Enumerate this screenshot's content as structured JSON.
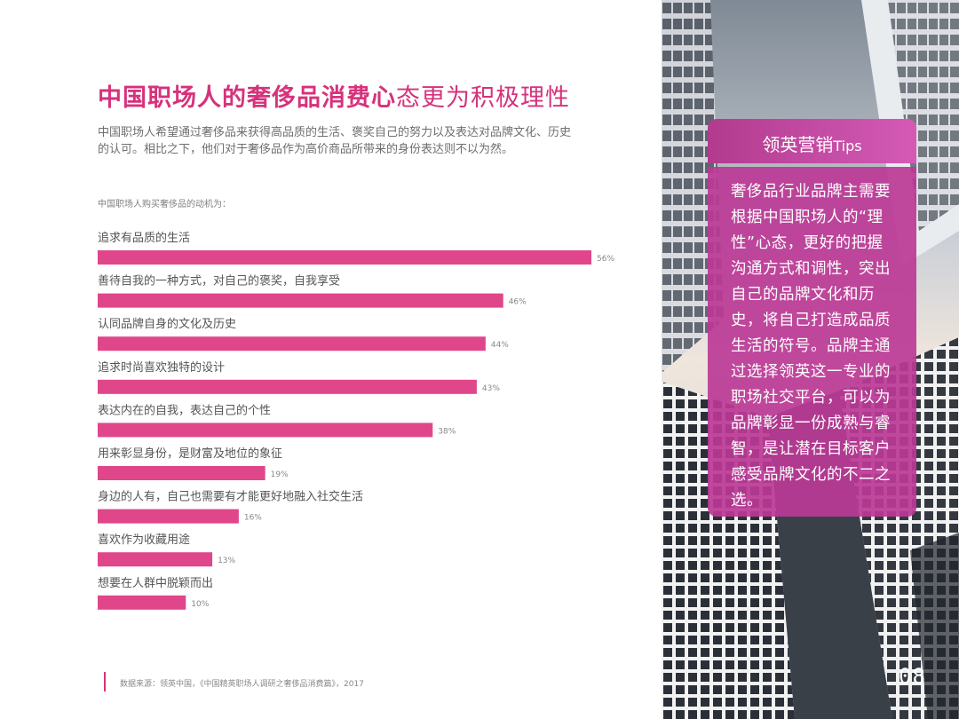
{
  "header": {
    "title_main": "中国职场人的奢侈品消费心",
    "title_rest": "态更为积极理性"
  },
  "intro": {
    "line1": "中国职场人希望通过奢侈品来获得高品质的生活、褒奖自己的努力以及表达对品牌文化、历史",
    "line2": "的认可。相比之下，他们对于奢侈品作为高价商品所带来的身份表达则不以为然。"
  },
  "chart_caption": "中国职场人购买奢侈品的动机为：",
  "chart_data": {
    "type": "bar",
    "orientation": "horizontal",
    "categories": [
      "追求有品质的生活",
      "善待自我的一种方式，对自己的褒奖，自我享受",
      "认同品牌自身的文化及历史",
      "追求时尚喜欢独特的设计",
      "表达内在的自我，表达自己的个性",
      "用来彰显身份，是财富及地位的象征",
      "身边的人有，自己也需要有才能更好地融入社交生活",
      "喜欢作为收藏用途",
      "想要在人群中脱颖而出"
    ],
    "values": [
      56,
      46,
      44,
      43,
      38,
      19,
      16,
      13,
      10
    ],
    "value_labels": [
      "56%",
      "46%",
      "44%",
      "43%",
      "38%",
      "19%",
      "16%",
      "13%",
      "10%"
    ],
    "unit": "%",
    "xlim": [
      0,
      56
    ],
    "bar_color": "#e0468a",
    "grid": false
  },
  "footer": {
    "source": "数据来源：领英中国，《中国精英职场人调研之奢侈品消费篇》，2017"
  },
  "tips": {
    "heading": "领英营销",
    "heading_suffix": "Tips",
    "body": "奢侈品行业品牌主需要根据中国职场人的“理性”心态，更好的把握沟通方式和调性，突出自己的品牌文化和历史，将自己打造成品质生活的符号。品牌主通过选择领英这一专业的职场社交平台，可以为品牌彰显一份成熟与睿智，是让潜在目标客户感受品牌文化的不二之选。"
  },
  "page_number": "08",
  "colors": {
    "accent": "#d6327c",
    "bar": "#e0468a",
    "tips_bg": "#bb3a96"
  }
}
